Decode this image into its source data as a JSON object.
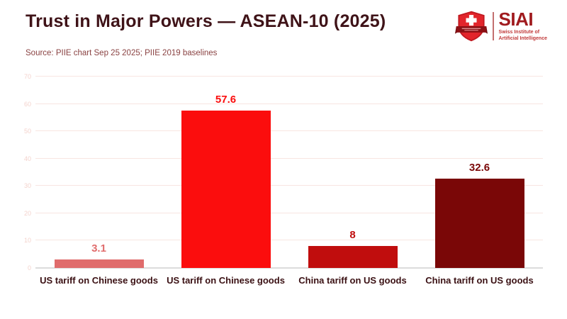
{
  "header": {
    "title": "Trust in Major Powers — ASEAN-10 (2025)",
    "source": "Source: PIIE chart Sep 25 2025; PIIE 2019 baselines",
    "logo": {
      "name": "SIAI",
      "subtitle_line1": "Swiss Institute of",
      "subtitle_line2": "Artificial Intelligence"
    }
  },
  "chart_data": {
    "type": "bar",
    "title": "Trust in Major Powers — ASEAN-10 (2025)",
    "categories": [
      "US tariff on Chinese goods",
      "US tariff on Chinese goods",
      "China tariff on US goods",
      "China tariff on US goods"
    ],
    "values": [
      3.1,
      57.6,
      8,
      32.6
    ],
    "value_labels": [
      "3.1",
      "57.6",
      "8",
      "32.6"
    ],
    "bar_colors": [
      "#e06c6c",
      "#fb0d0d",
      "#c00d0d",
      "#7a0707"
    ],
    "xlabel": "",
    "ylabel": "",
    "ylim": [
      0,
      70
    ],
    "yticks": [
      0,
      10,
      20,
      30,
      40,
      50,
      60,
      70
    ],
    "grid": true,
    "legend": "none"
  },
  "colors": {
    "title": "#3f1318",
    "source_text": "#8a4343",
    "category_label": "#3a1013",
    "gridline": "#f8e5e1",
    "axis_line": "#dcdcdc",
    "tick_label": "#f4d3cd",
    "logo_red": "#e2252b",
    "logo_banner": "#8c1014",
    "logo_text": "#a01b1f"
  }
}
